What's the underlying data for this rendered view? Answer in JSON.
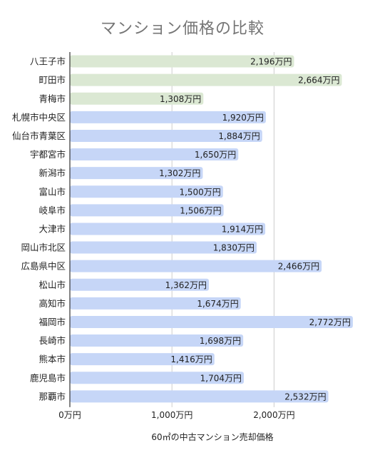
{
  "chart_data": {
    "type": "bar",
    "orientation": "horizontal",
    "title": "マンション価格の比較",
    "xlabel": "60㎡の中古マンション売却価格",
    "ylabel": "",
    "xlim": [
      0,
      2800
    ],
    "x_ticks": [
      {
        "value": 0,
        "label": "0万円"
      },
      {
        "value": 1000,
        "label": "1,000万円"
      },
      {
        "value": 2000,
        "label": "2,000万円"
      }
    ],
    "grid": true,
    "colors": {
      "highlight": "#dbe8d3",
      "default": "#c6d6f7",
      "grid": "#cccccc",
      "axis": "#333333"
    },
    "categories": [
      "八王子市",
      "町田市",
      "青梅市",
      "札幌市中央区",
      "仙台市青葉区",
      "宇都宮市",
      "新潟市",
      "富山市",
      "岐阜市",
      "大津市",
      "岡山市北区",
      "広島県中区",
      "松山市",
      "高知市",
      "福岡市",
      "長崎市",
      "熊本市",
      "鹿児島市",
      "那覇市"
    ],
    "values": [
      2196,
      2664,
      1308,
      1920,
      1884,
      1650,
      1302,
      1500,
      1506,
      1914,
      1830,
      2466,
      1362,
      1674,
      2772,
      1698,
      1416,
      1704,
      2532
    ],
    "data_labels": [
      "2,196万円",
      "2,664万円",
      "1,308万円",
      "1,920万円",
      "1,884万円",
      "1,650万円",
      "1,302万円",
      "1,500万円",
      "1,506万円",
      "1,914万円",
      "1,830万円",
      "2,466万円",
      "1,362万円",
      "1,674万円",
      "2,772万円",
      "1,698万円",
      "1,416万円",
      "1,704万円",
      "2,532万円"
    ],
    "highlighted": [
      "八王子市",
      "町田市",
      "青梅市"
    ]
  }
}
